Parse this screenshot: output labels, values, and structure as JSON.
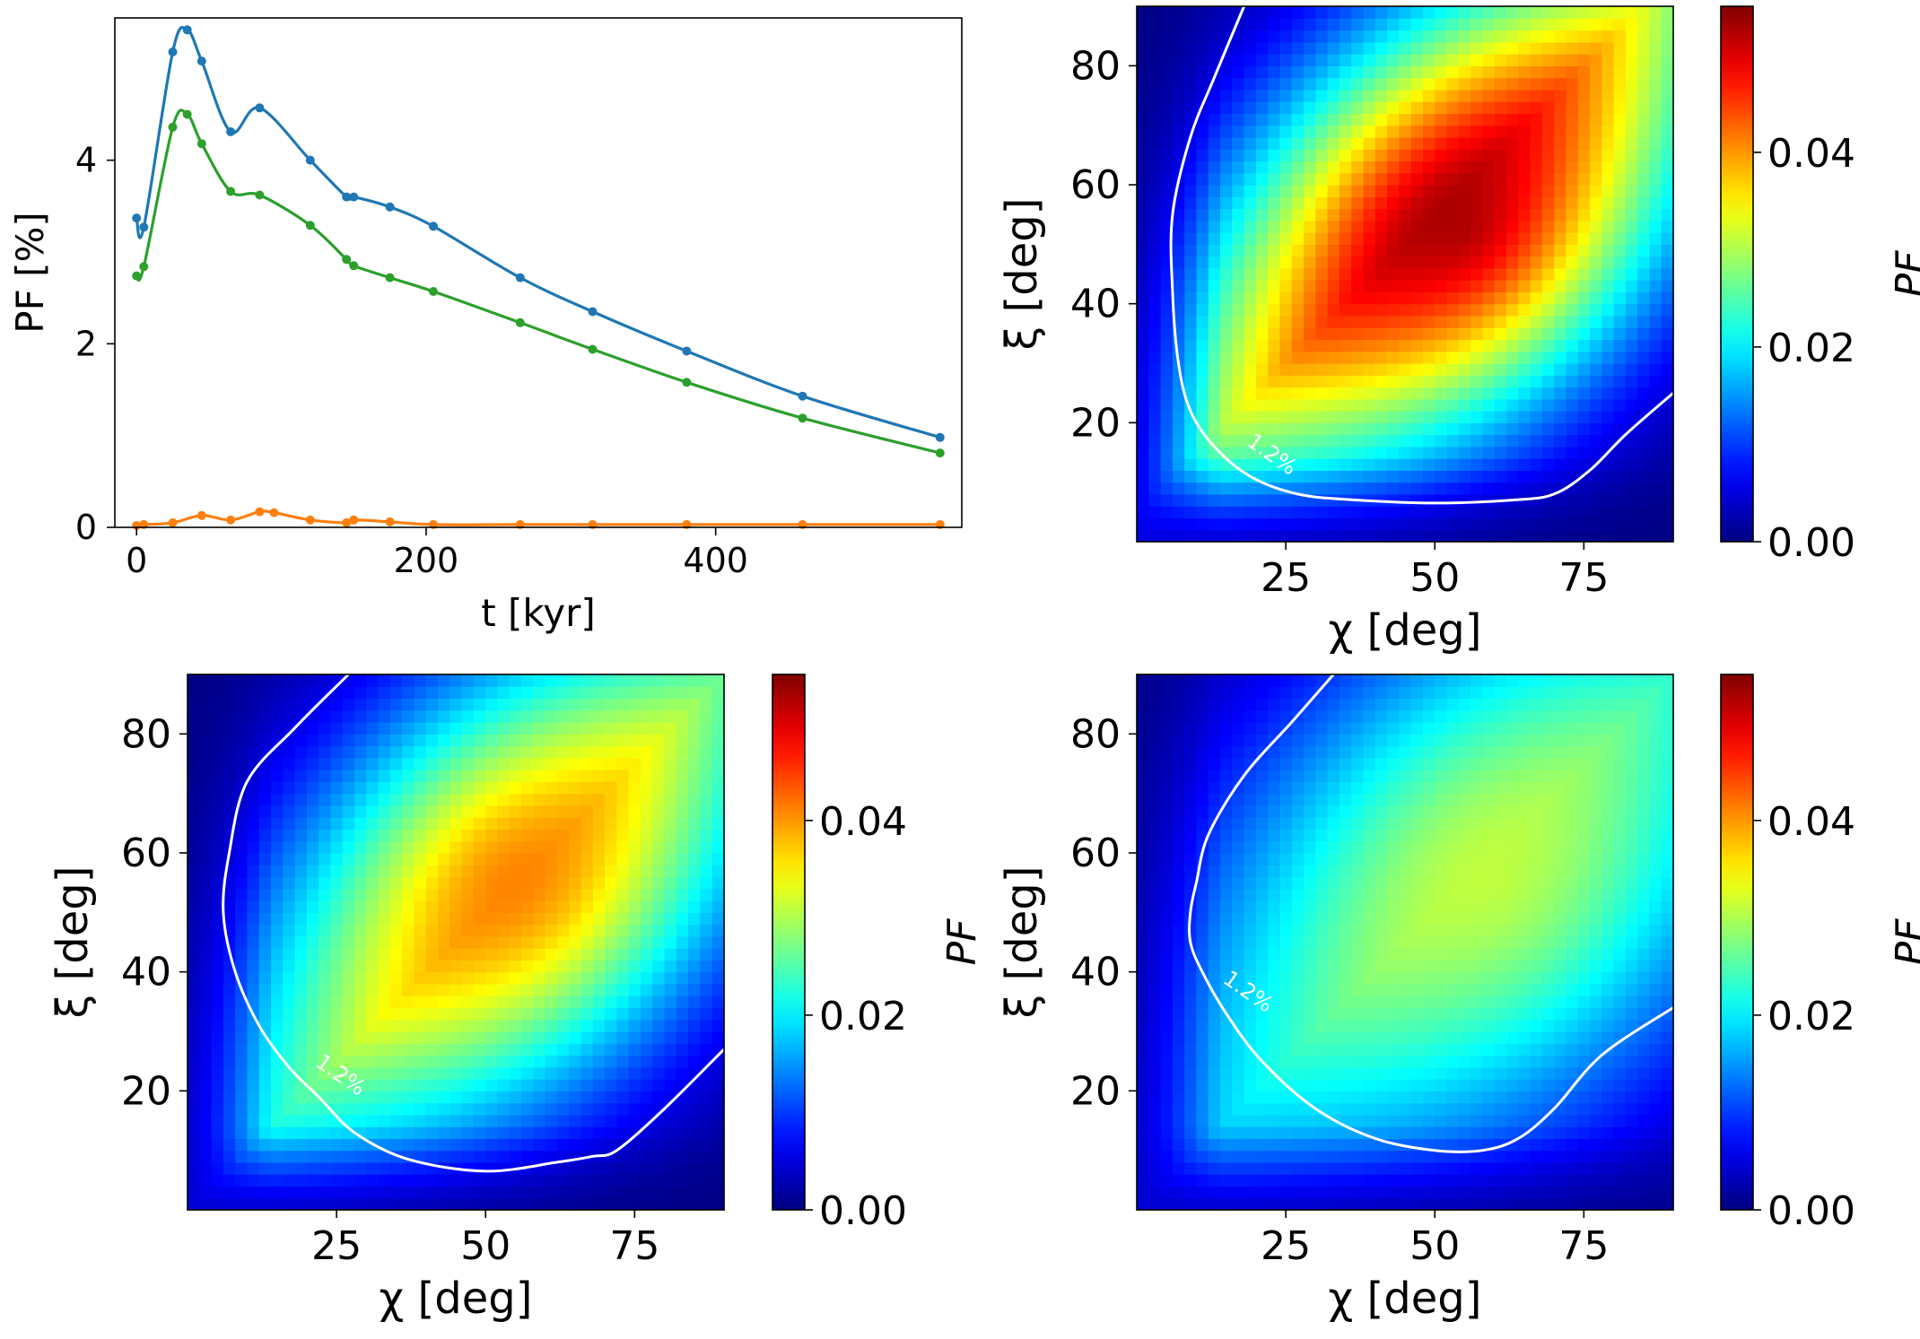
{
  "chart_data": [
    {
      "type": "line",
      "xlabel": "t [kyr]",
      "ylabel": "PF [%]",
      "xlim": [
        -15,
        570
      ],
      "ylim": [
        0,
        5.55
      ],
      "xticks": [
        0,
        200,
        400
      ],
      "yticks": [
        0,
        2,
        4
      ],
      "grid": false,
      "series": [
        {
          "color": "#1f77b4",
          "x": [
            0,
            5,
            25,
            35,
            45,
            65,
            85,
            120,
            145,
            150,
            175,
            205,
            265,
            315,
            380,
            460,
            555
          ],
          "y": [
            3.37,
            3.27,
            5.18,
            5.42,
            5.08,
            4.31,
            4.57,
            4.0,
            3.6,
            3.6,
            3.49,
            3.28,
            2.72,
            2.35,
            1.92,
            1.43,
            0.98
          ]
        },
        {
          "color": "#2ca02c",
          "x": [
            0,
            5,
            25,
            35,
            45,
            65,
            85,
            120,
            145,
            150,
            175,
            205,
            265,
            315,
            380,
            460,
            555
          ],
          "y": [
            2.74,
            2.84,
            4.36,
            4.5,
            4.18,
            3.66,
            3.62,
            3.29,
            2.92,
            2.85,
            2.72,
            2.57,
            2.23,
            1.94,
            1.58,
            1.19,
            0.81
          ]
        },
        {
          "color": "#ff7f0e",
          "x": [
            0,
            5,
            25,
            45,
            65,
            85,
            95,
            120,
            145,
            150,
            175,
            205,
            265,
            315,
            380,
            460,
            555
          ],
          "y": [
            0.02,
            0.03,
            0.05,
            0.13,
            0.08,
            0.17,
            0.16,
            0.08,
            0.05,
            0.08,
            0.06,
            0.03,
            0.03,
            0.03,
            0.03,
            0.03,
            0.03
          ]
        }
      ]
    },
    {
      "type": "heatmap",
      "xlabel": "χ [deg]",
      "ylabel": "ξ [deg]",
      "xlim": [
        0,
        90
      ],
      "ylim": [
        0,
        90
      ],
      "xticks": [
        25,
        50,
        75
      ],
      "yticks": [
        20,
        40,
        60,
        80
      ],
      "colorbar_label": "PF",
      "colorbar_range": [
        0,
        0.055
      ],
      "colorbar_ticks": [
        0.0,
        0.02,
        0.04
      ],
      "colorbar_ticklabels": [
        "0.00",
        "0.02",
        "0.04"
      ],
      "colormap": "jet",
      "contour_level": 0.012,
      "contour_label": "1.2%",
      "peak_value": 0.053,
      "contour": [
        [
          18,
          90
        ],
        [
          13,
          78
        ],
        [
          9,
          68
        ],
        [
          6,
          55
        ],
        [
          6,
          42
        ],
        [
          7,
          30
        ],
        [
          9,
          22
        ],
        [
          13,
          16
        ],
        [
          19,
          11
        ],
        [
          27,
          8
        ],
        [
          37,
          7
        ],
        [
          50,
          6.5
        ],
        [
          63,
          7
        ],
        [
          70,
          8
        ],
        [
          76,
          12
        ],
        [
          82,
          18
        ],
        [
          90,
          25
        ]
      ]
    },
    {
      "type": "heatmap",
      "xlabel": "χ [deg]",
      "ylabel": "ξ [deg]",
      "xlim": [
        0,
        90
      ],
      "ylim": [
        0,
        90
      ],
      "xticks": [
        25,
        50,
        75
      ],
      "yticks": [
        20,
        40,
        60,
        80
      ],
      "colorbar_label": "PF",
      "colorbar_range": [
        0,
        0.055
      ],
      "colorbar_ticks": [
        0.0,
        0.02,
        0.04
      ],
      "colorbar_ticklabels": [
        "0.00",
        "0.02",
        "0.04"
      ],
      "colormap": "jet",
      "contour_level": 0.012,
      "contour_label": "1.2%",
      "peak_value": 0.041,
      "contour": [
        [
          27,
          90
        ],
        [
          18,
          81
        ],
        [
          10,
          72
        ],
        [
          7,
          60
        ],
        [
          6,
          50
        ],
        [
          8,
          40
        ],
        [
          12,
          31
        ],
        [
          17,
          24
        ],
        [
          22,
          19
        ],
        [
          28,
          13
        ],
        [
          37,
          8.5
        ],
        [
          50,
          6.5
        ],
        [
          62,
          8
        ],
        [
          68,
          9
        ],
        [
          72,
          10
        ],
        [
          80,
          17
        ],
        [
          90,
          27
        ]
      ]
    },
    {
      "type": "heatmap",
      "xlabel": "χ [deg]",
      "ylabel": "ξ [deg]",
      "xlim": [
        0,
        90
      ],
      "ylim": [
        0,
        90
      ],
      "xticks": [
        25,
        50,
        75
      ],
      "yticks": [
        20,
        40,
        60,
        80
      ],
      "colorbar_label": "PF",
      "colorbar_range": [
        0,
        0.055
      ],
      "colorbar_ticks": [
        0.0,
        0.02,
        0.04
      ],
      "colorbar_ticklabels": [
        "0.00",
        "0.02",
        "0.04"
      ],
      "colormap": "jet",
      "contour_level": 0.012,
      "contour_label": "1.2%",
      "peak_value": 0.031,
      "contour": [
        [
          33,
          90
        ],
        [
          26,
          82
        ],
        [
          18,
          73
        ],
        [
          12,
          63
        ],
        [
          10,
          55
        ],
        [
          9,
          50
        ],
        [
          9,
          45
        ],
        [
          11,
          40
        ],
        [
          15,
          33
        ],
        [
          21,
          25
        ],
        [
          30,
          17
        ],
        [
          40,
          12
        ],
        [
          50,
          10
        ],
        [
          58,
          10
        ],
        [
          64,
          12
        ],
        [
          70,
          17
        ],
        [
          78,
          26
        ],
        [
          90,
          34
        ]
      ]
    }
  ]
}
